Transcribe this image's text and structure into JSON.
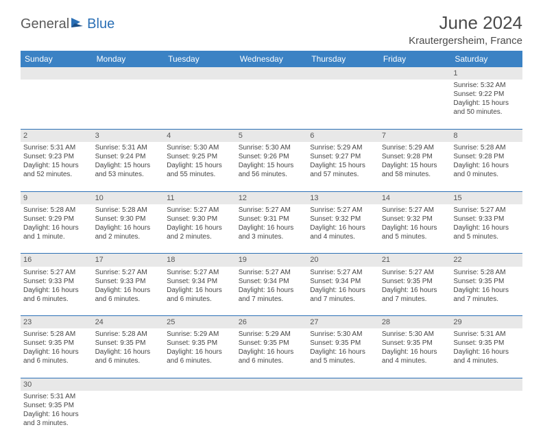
{
  "logo": {
    "text1": "General",
    "text2": "Blue"
  },
  "title": "June 2024",
  "location": "Krautergersheim, France",
  "header_bg": "#3b82c4",
  "rule_color": "#2a6fb5",
  "shade_color": "#e8e8e8",
  "days": [
    "Sunday",
    "Monday",
    "Tuesday",
    "Wednesday",
    "Thursday",
    "Friday",
    "Saturday"
  ],
  "weeks": [
    {
      "nums": [
        "",
        "",
        "",
        "",
        "",
        "",
        "1"
      ],
      "cells": [
        null,
        null,
        null,
        null,
        null,
        null,
        {
          "sunrise": "5:32 AM",
          "sunset": "9:22 PM",
          "daylight": "15 hours and 50 minutes."
        }
      ]
    },
    {
      "nums": [
        "2",
        "3",
        "4",
        "5",
        "6",
        "7",
        "8"
      ],
      "cells": [
        {
          "sunrise": "5:31 AM",
          "sunset": "9:23 PM",
          "daylight": "15 hours and 52 minutes."
        },
        {
          "sunrise": "5:31 AM",
          "sunset": "9:24 PM",
          "daylight": "15 hours and 53 minutes."
        },
        {
          "sunrise": "5:30 AM",
          "sunset": "9:25 PM",
          "daylight": "15 hours and 55 minutes."
        },
        {
          "sunrise": "5:30 AM",
          "sunset": "9:26 PM",
          "daylight": "15 hours and 56 minutes."
        },
        {
          "sunrise": "5:29 AM",
          "sunset": "9:27 PM",
          "daylight": "15 hours and 57 minutes."
        },
        {
          "sunrise": "5:29 AM",
          "sunset": "9:28 PM",
          "daylight": "15 hours and 58 minutes."
        },
        {
          "sunrise": "5:28 AM",
          "sunset": "9:28 PM",
          "daylight": "16 hours and 0 minutes."
        }
      ]
    },
    {
      "nums": [
        "9",
        "10",
        "11",
        "12",
        "13",
        "14",
        "15"
      ],
      "cells": [
        {
          "sunrise": "5:28 AM",
          "sunset": "9:29 PM",
          "daylight": "16 hours and 1 minute."
        },
        {
          "sunrise": "5:28 AM",
          "sunset": "9:30 PM",
          "daylight": "16 hours and 2 minutes."
        },
        {
          "sunrise": "5:27 AM",
          "sunset": "9:30 PM",
          "daylight": "16 hours and 2 minutes."
        },
        {
          "sunrise": "5:27 AM",
          "sunset": "9:31 PM",
          "daylight": "16 hours and 3 minutes."
        },
        {
          "sunrise": "5:27 AM",
          "sunset": "9:32 PM",
          "daylight": "16 hours and 4 minutes."
        },
        {
          "sunrise": "5:27 AM",
          "sunset": "9:32 PM",
          "daylight": "16 hours and 5 minutes."
        },
        {
          "sunrise": "5:27 AM",
          "sunset": "9:33 PM",
          "daylight": "16 hours and 5 minutes."
        }
      ]
    },
    {
      "nums": [
        "16",
        "17",
        "18",
        "19",
        "20",
        "21",
        "22"
      ],
      "cells": [
        {
          "sunrise": "5:27 AM",
          "sunset": "9:33 PM",
          "daylight": "16 hours and 6 minutes."
        },
        {
          "sunrise": "5:27 AM",
          "sunset": "9:33 PM",
          "daylight": "16 hours and 6 minutes."
        },
        {
          "sunrise": "5:27 AM",
          "sunset": "9:34 PM",
          "daylight": "16 hours and 6 minutes."
        },
        {
          "sunrise": "5:27 AM",
          "sunset": "9:34 PM",
          "daylight": "16 hours and 7 minutes."
        },
        {
          "sunrise": "5:27 AM",
          "sunset": "9:34 PM",
          "daylight": "16 hours and 7 minutes."
        },
        {
          "sunrise": "5:27 AM",
          "sunset": "9:35 PM",
          "daylight": "16 hours and 7 minutes."
        },
        {
          "sunrise": "5:28 AM",
          "sunset": "9:35 PM",
          "daylight": "16 hours and 7 minutes."
        }
      ]
    },
    {
      "nums": [
        "23",
        "24",
        "25",
        "26",
        "27",
        "28",
        "29"
      ],
      "cells": [
        {
          "sunrise": "5:28 AM",
          "sunset": "9:35 PM",
          "daylight": "16 hours and 6 minutes."
        },
        {
          "sunrise": "5:28 AM",
          "sunset": "9:35 PM",
          "daylight": "16 hours and 6 minutes."
        },
        {
          "sunrise": "5:29 AM",
          "sunset": "9:35 PM",
          "daylight": "16 hours and 6 minutes."
        },
        {
          "sunrise": "5:29 AM",
          "sunset": "9:35 PM",
          "daylight": "16 hours and 6 minutes."
        },
        {
          "sunrise": "5:30 AM",
          "sunset": "9:35 PM",
          "daylight": "16 hours and 5 minutes."
        },
        {
          "sunrise": "5:30 AM",
          "sunset": "9:35 PM",
          "daylight": "16 hours and 4 minutes."
        },
        {
          "sunrise": "5:31 AM",
          "sunset": "9:35 PM",
          "daylight": "16 hours and 4 minutes."
        }
      ]
    },
    {
      "nums": [
        "30",
        "",
        "",
        "",
        "",
        "",
        ""
      ],
      "cells": [
        {
          "sunrise": "5:31 AM",
          "sunset": "9:35 PM",
          "daylight": "16 hours and 3 minutes."
        },
        null,
        null,
        null,
        null,
        null,
        null
      ]
    }
  ]
}
